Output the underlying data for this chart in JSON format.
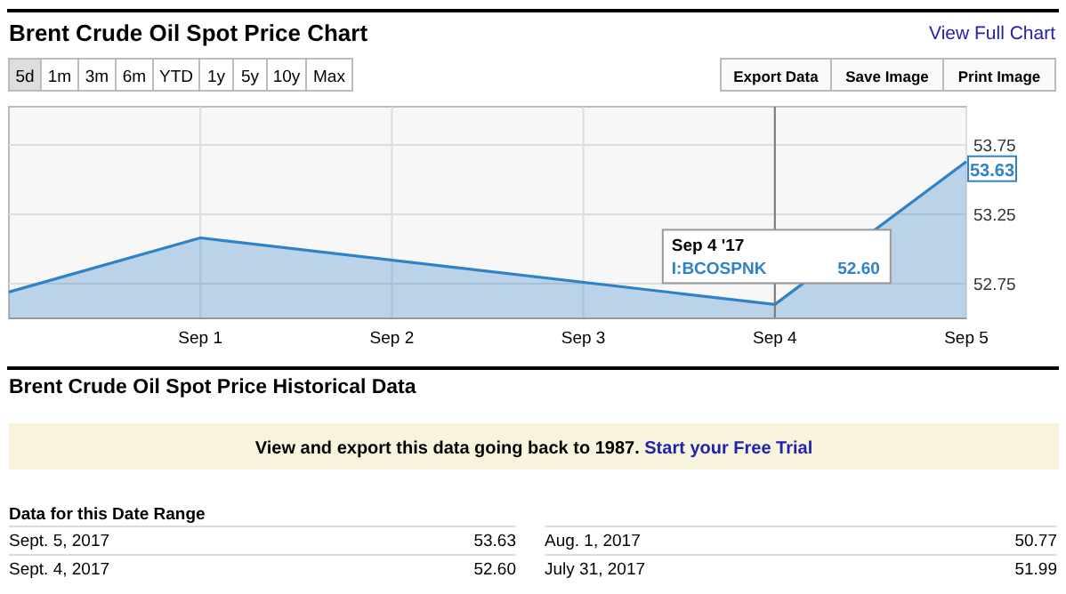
{
  "chart_data": [
    {
      "type": "area",
      "title": "Brent Crude Oil Spot Price Chart",
      "x": [
        "2017-08-31",
        "2017-09-01",
        "2017-09-04",
        "2017-09-05"
      ],
      "series": [
        {
          "color": "#2f82c8",
          "values": [
            52.69,
            53.08,
            52.6,
            53.63
          ],
          "value_labels": [
            null,
            null,
            null,
            "53.63"
          ]
        }
      ],
      "xlim": [
        "2017-08-31",
        "2017-09-05"
      ],
      "xticks": [
        {
          "value": "2017-09-01",
          "label": "Sep 1"
        },
        {
          "value": "2017-09-02",
          "label": "Sep 2"
        },
        {
          "value": "2017-09-03",
          "label": "Sep 3"
        },
        {
          "value": "2017-09-04",
          "label": "Sep 4"
        },
        {
          "value": "2017-09-05",
          "label": "Sep 5"
        }
      ],
      "ylim": [
        52.5,
        54.0
      ],
      "yticks": [
        52.75,
        53.25,
        53.75
      ],
      "grid": true,
      "ref_lines": [
        {
          "axis": "x",
          "value": "2017-09-04",
          "color": "#777777"
        }
      ],
      "annotations": [
        "View Full Chart",
        "5d",
        "1m",
        "3m",
        "6m",
        "YTD",
        "1y",
        "5y",
        "10y",
        "Max",
        "Export Data",
        "Save Image",
        "Print Image",
        "I:BCOSPNK",
        "52.60",
        "Sep 4 '17"
      ]
    },
    {
      "type": "other",
      "title": "Brent Crude Oil Spot Price Historical Data",
      "annotations": [
        "View and export this data going back to 1987.",
        "Start your Free Trial",
        "Data for this Date Range",
        "Sept. 5, 2017",
        "53.63",
        "Aug. 1, 2017",
        "50.77",
        "Sept. 4, 2017",
        "52.60",
        "July 31, 2017",
        "51.99"
      ]
    }
  ]
}
